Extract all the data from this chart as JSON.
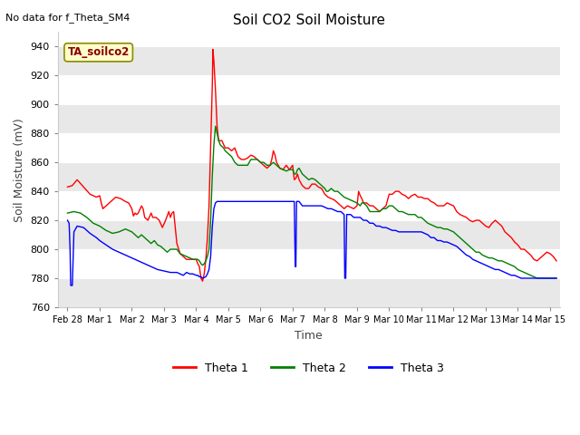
{
  "title": "Soil CO2 Soil Moisture",
  "no_data_text": "No data for f_Theta_SM4",
  "sensor_label": "TA_soilco2",
  "xlabel": "Time",
  "ylabel": "Soil Moisture (mV)",
  "ylim": [
    760,
    950
  ],
  "yticks": [
    760,
    780,
    800,
    820,
    840,
    860,
    880,
    900,
    920,
    940
  ],
  "bg_color": "#ffffff",
  "fig_color": "#ffffff",
  "grid_colors": [
    "#e8e8e8",
    "#ffffff"
  ],
  "legend_labels": [
    "Theta 1",
    "Theta 2",
    "Theta 3"
  ],
  "line_colors": [
    "red",
    "green",
    "blue"
  ],
  "xtick_positions": [
    0,
    1,
    2,
    3,
    4,
    5,
    6,
    7,
    8,
    9,
    10,
    11,
    12,
    13,
    14,
    15
  ],
  "xtick_labels": [
    "Feb 28",
    "Mar 1",
    "Mar 2",
    "Mar 3",
    "Mar 4",
    "Mar 5",
    "Mar 6",
    "Mar 7",
    "Mar 8",
    "Mar 9",
    "Mar 10",
    "Mar 11",
    "Mar 12",
    "Mar 13",
    "Mar 14",
    "Mar 15"
  ],
  "theta1": [
    [
      0.0,
      843
    ],
    [
      0.15,
      844
    ],
    [
      0.3,
      848
    ],
    [
      0.5,
      843
    ],
    [
      0.7,
      838
    ],
    [
      0.9,
      836
    ],
    [
      1.0,
      837
    ],
    [
      1.05,
      832
    ],
    [
      1.1,
      828
    ],
    [
      1.2,
      830
    ],
    [
      1.35,
      833
    ],
    [
      1.5,
      836
    ],
    [
      1.65,
      835
    ],
    [
      1.8,
      833
    ],
    [
      1.9,
      832
    ],
    [
      2.0,
      828
    ],
    [
      2.05,
      823
    ],
    [
      2.1,
      825
    ],
    [
      2.15,
      824
    ],
    [
      2.2,
      825
    ],
    [
      2.3,
      830
    ],
    [
      2.35,
      828
    ],
    [
      2.4,
      822
    ],
    [
      2.5,
      820
    ],
    [
      2.6,
      825
    ],
    [
      2.65,
      822
    ],
    [
      2.75,
      822
    ],
    [
      2.85,
      820
    ],
    [
      2.95,
      815
    ],
    [
      3.05,
      820
    ],
    [
      3.1,
      823
    ],
    [
      3.15,
      826
    ],
    [
      3.2,
      822
    ],
    [
      3.25,
      825
    ],
    [
      3.3,
      826
    ],
    [
      3.35,
      815
    ],
    [
      3.4,
      804
    ],
    [
      3.5,
      797
    ],
    [
      3.6,
      795
    ],
    [
      3.7,
      793
    ],
    [
      3.8,
      793
    ],
    [
      3.9,
      793
    ],
    [
      4.0,
      793
    ],
    [
      4.05,
      790
    ],
    [
      4.1,
      788
    ],
    [
      4.15,
      780
    ],
    [
      4.2,
      778
    ],
    [
      4.25,
      783
    ],
    [
      4.3,
      793
    ],
    [
      4.35,
      808
    ],
    [
      4.4,
      830
    ],
    [
      4.45,
      870
    ],
    [
      4.5,
      912
    ],
    [
      4.52,
      938
    ],
    [
      4.55,
      930
    ],
    [
      4.6,
      910
    ],
    [
      4.65,
      885
    ],
    [
      4.7,
      875
    ],
    [
      4.75,
      875
    ],
    [
      4.8,
      875
    ],
    [
      4.9,
      870
    ],
    [
      5.0,
      870
    ],
    [
      5.1,
      868
    ],
    [
      5.2,
      870
    ],
    [
      5.3,
      864
    ],
    [
      5.4,
      862
    ],
    [
      5.5,
      862
    ],
    [
      5.6,
      863
    ],
    [
      5.7,
      865
    ],
    [
      5.8,
      864
    ],
    [
      5.9,
      862
    ],
    [
      6.0,
      860
    ],
    [
      6.1,
      858
    ],
    [
      6.2,
      856
    ],
    [
      6.3,
      858
    ],
    [
      6.35,
      862
    ],
    [
      6.4,
      868
    ],
    [
      6.45,
      865
    ],
    [
      6.5,
      860
    ],
    [
      6.6,
      856
    ],
    [
      6.7,
      855
    ],
    [
      6.8,
      858
    ],
    [
      6.9,
      855
    ],
    [
      7.0,
      858
    ],
    [
      7.05,
      848
    ],
    [
      7.1,
      849
    ],
    [
      7.15,
      852
    ],
    [
      7.2,
      848
    ],
    [
      7.25,
      846
    ],
    [
      7.3,
      844
    ],
    [
      7.4,
      842
    ],
    [
      7.5,
      842
    ],
    [
      7.6,
      845
    ],
    [
      7.7,
      845
    ],
    [
      7.8,
      843
    ],
    [
      7.9,
      842
    ],
    [
      8.0,
      838
    ],
    [
      8.1,
      836
    ],
    [
      8.2,
      835
    ],
    [
      8.3,
      834
    ],
    [
      8.4,
      832
    ],
    [
      8.5,
      830
    ],
    [
      8.6,
      828
    ],
    [
      8.7,
      830
    ],
    [
      8.8,
      829
    ],
    [
      8.9,
      828
    ],
    [
      9.0,
      830
    ],
    [
      9.05,
      840
    ],
    [
      9.1,
      837
    ],
    [
      9.15,
      835
    ],
    [
      9.2,
      832
    ],
    [
      9.3,
      832
    ],
    [
      9.4,
      830
    ],
    [
      9.5,
      830
    ],
    [
      9.6,
      828
    ],
    [
      9.7,
      826
    ],
    [
      9.8,
      828
    ],
    [
      9.9,
      830
    ],
    [
      10.0,
      838
    ],
    [
      10.1,
      838
    ],
    [
      10.2,
      840
    ],
    [
      10.3,
      840
    ],
    [
      10.4,
      838
    ],
    [
      10.5,
      837
    ],
    [
      10.6,
      835
    ],
    [
      10.7,
      837
    ],
    [
      10.8,
      838
    ],
    [
      10.9,
      836
    ],
    [
      11.0,
      836
    ],
    [
      11.1,
      835
    ],
    [
      11.2,
      835
    ],
    [
      11.3,
      833
    ],
    [
      11.4,
      832
    ],
    [
      11.5,
      830
    ],
    [
      11.6,
      830
    ],
    [
      11.7,
      830
    ],
    [
      11.8,
      832
    ],
    [
      11.9,
      831
    ],
    [
      12.0,
      830
    ],
    [
      12.1,
      826
    ],
    [
      12.2,
      824
    ],
    [
      12.3,
      823
    ],
    [
      12.4,
      822
    ],
    [
      12.5,
      820
    ],
    [
      12.6,
      819
    ],
    [
      12.7,
      820
    ],
    [
      12.8,
      820
    ],
    [
      12.9,
      818
    ],
    [
      13.0,
      816
    ],
    [
      13.1,
      815
    ],
    [
      13.2,
      818
    ],
    [
      13.3,
      820
    ],
    [
      13.4,
      818
    ],
    [
      13.5,
      816
    ],
    [
      13.6,
      812
    ],
    [
      13.7,
      810
    ],
    [
      13.8,
      808
    ],
    [
      13.9,
      805
    ],
    [
      14.0,
      803
    ],
    [
      14.1,
      800
    ],
    [
      14.2,
      800
    ],
    [
      14.3,
      798
    ],
    [
      14.4,
      796
    ],
    [
      14.5,
      793
    ],
    [
      14.6,
      792
    ],
    [
      14.7,
      794
    ],
    [
      14.8,
      796
    ],
    [
      14.9,
      798
    ],
    [
      15.0,
      797
    ],
    [
      15.1,
      795
    ],
    [
      15.2,
      792
    ]
  ],
  "theta2": [
    [
      0.0,
      825
    ],
    [
      0.2,
      826
    ],
    [
      0.4,
      825
    ],
    [
      0.6,
      822
    ],
    [
      0.8,
      818
    ],
    [
      1.0,
      816
    ],
    [
      1.2,
      813
    ],
    [
      1.4,
      811
    ],
    [
      1.6,
      812
    ],
    [
      1.8,
      814
    ],
    [
      2.0,
      812
    ],
    [
      2.1,
      810
    ],
    [
      2.2,
      808
    ],
    [
      2.3,
      810
    ],
    [
      2.4,
      808
    ],
    [
      2.5,
      806
    ],
    [
      2.6,
      804
    ],
    [
      2.7,
      806
    ],
    [
      2.8,
      803
    ],
    [
      2.9,
      802
    ],
    [
      3.0,
      800
    ],
    [
      3.1,
      798
    ],
    [
      3.2,
      800
    ],
    [
      3.3,
      800
    ],
    [
      3.4,
      800
    ],
    [
      3.5,
      797
    ],
    [
      3.6,
      796
    ],
    [
      3.7,
      795
    ],
    [
      3.8,
      794
    ],
    [
      3.9,
      793
    ],
    [
      4.0,
      793
    ],
    [
      4.05,
      793
    ],
    [
      4.1,
      792
    ],
    [
      4.15,
      790
    ],
    [
      4.2,
      789
    ],
    [
      4.25,
      790
    ],
    [
      4.3,
      792
    ],
    [
      4.35,
      795
    ],
    [
      4.4,
      800
    ],
    [
      4.45,
      820
    ],
    [
      4.5,
      850
    ],
    [
      4.55,
      872
    ],
    [
      4.6,
      885
    ],
    [
      4.65,
      880
    ],
    [
      4.7,
      875
    ],
    [
      4.75,
      872
    ],
    [
      4.85,
      870
    ],
    [
      4.9,
      868
    ],
    [
      5.0,
      866
    ],
    [
      5.1,
      864
    ],
    [
      5.2,
      860
    ],
    [
      5.3,
      858
    ],
    [
      5.4,
      858
    ],
    [
      5.5,
      858
    ],
    [
      5.6,
      858
    ],
    [
      5.7,
      862
    ],
    [
      5.8,
      862
    ],
    [
      5.9,
      862
    ],
    [
      6.0,
      860
    ],
    [
      6.1,
      860
    ],
    [
      6.2,
      858
    ],
    [
      6.3,
      858
    ],
    [
      6.4,
      860
    ],
    [
      6.5,
      858
    ],
    [
      6.6,
      856
    ],
    [
      6.7,
      855
    ],
    [
      6.8,
      854
    ],
    [
      6.9,
      855
    ],
    [
      7.0,
      855
    ],
    [
      7.05,
      852
    ],
    [
      7.1,
      852
    ],
    [
      7.15,
      855
    ],
    [
      7.2,
      856
    ],
    [
      7.3,
      852
    ],
    [
      7.4,
      850
    ],
    [
      7.5,
      848
    ],
    [
      7.6,
      849
    ],
    [
      7.7,
      848
    ],
    [
      7.8,
      846
    ],
    [
      7.9,
      844
    ],
    [
      8.0,
      842
    ],
    [
      8.05,
      840
    ],
    [
      8.1,
      840
    ],
    [
      8.2,
      842
    ],
    [
      8.3,
      840
    ],
    [
      8.4,
      840
    ],
    [
      8.5,
      838
    ],
    [
      8.6,
      836
    ],
    [
      8.7,
      835
    ],
    [
      8.8,
      834
    ],
    [
      8.9,
      833
    ],
    [
      9.0,
      832
    ],
    [
      9.1,
      830
    ],
    [
      9.15,
      832
    ],
    [
      9.2,
      832
    ],
    [
      9.3,
      830
    ],
    [
      9.35,
      828
    ],
    [
      9.4,
      826
    ],
    [
      9.5,
      826
    ],
    [
      9.6,
      826
    ],
    [
      9.7,
      826
    ],
    [
      9.8,
      828
    ],
    [
      9.9,
      828
    ],
    [
      10.0,
      830
    ],
    [
      10.1,
      830
    ],
    [
      10.2,
      828
    ],
    [
      10.3,
      826
    ],
    [
      10.4,
      826
    ],
    [
      10.5,
      825
    ],
    [
      10.6,
      824
    ],
    [
      10.7,
      824
    ],
    [
      10.8,
      824
    ],
    [
      10.9,
      822
    ],
    [
      11.0,
      822
    ],
    [
      11.1,
      820
    ],
    [
      11.2,
      818
    ],
    [
      11.3,
      817
    ],
    [
      11.4,
      816
    ],
    [
      11.5,
      815
    ],
    [
      11.6,
      815
    ],
    [
      11.7,
      814
    ],
    [
      11.8,
      814
    ],
    [
      11.9,
      813
    ],
    [
      12.0,
      812
    ],
    [
      12.1,
      810
    ],
    [
      12.2,
      808
    ],
    [
      12.3,
      806
    ],
    [
      12.4,
      804
    ],
    [
      12.5,
      802
    ],
    [
      12.6,
      800
    ],
    [
      12.7,
      798
    ],
    [
      12.8,
      798
    ],
    [
      12.9,
      796
    ],
    [
      13.0,
      795
    ],
    [
      13.1,
      794
    ],
    [
      13.2,
      794
    ],
    [
      13.3,
      793
    ],
    [
      13.4,
      792
    ],
    [
      13.5,
      792
    ],
    [
      13.6,
      791
    ],
    [
      13.7,
      790
    ],
    [
      13.8,
      789
    ],
    [
      13.9,
      788
    ],
    [
      14.0,
      786
    ],
    [
      14.1,
      785
    ],
    [
      14.2,
      784
    ],
    [
      14.3,
      783
    ],
    [
      14.4,
      782
    ],
    [
      14.5,
      781
    ],
    [
      14.6,
      780
    ],
    [
      14.7,
      780
    ],
    [
      14.8,
      780
    ],
    [
      14.9,
      780
    ],
    [
      15.0,
      780
    ],
    [
      15.1,
      780
    ],
    [
      15.2,
      780
    ]
  ],
  "theta3": [
    [
      0.0,
      820
    ],
    [
      0.05,
      818
    ],
    [
      0.08,
      800
    ],
    [
      0.1,
      775
    ],
    [
      0.15,
      775
    ],
    [
      0.2,
      812
    ],
    [
      0.3,
      816
    ],
    [
      0.5,
      815
    ],
    [
      0.7,
      811
    ],
    [
      0.9,
      808
    ],
    [
      1.0,
      806
    ],
    [
      1.2,
      803
    ],
    [
      1.4,
      800
    ],
    [
      1.6,
      798
    ],
    [
      1.8,
      796
    ],
    [
      2.0,
      794
    ],
    [
      2.2,
      792
    ],
    [
      2.4,
      790
    ],
    [
      2.6,
      788
    ],
    [
      2.8,
      786
    ],
    [
      3.0,
      785
    ],
    [
      3.2,
      784
    ],
    [
      3.4,
      784
    ],
    [
      3.5,
      783
    ],
    [
      3.6,
      782
    ],
    [
      3.7,
      784
    ],
    [
      3.8,
      783
    ],
    [
      3.9,
      783
    ],
    [
      4.0,
      782
    ],
    [
      4.05,
      782
    ],
    [
      4.1,
      781
    ],
    [
      4.15,
      781
    ],
    [
      4.2,
      780
    ],
    [
      4.3,
      781
    ],
    [
      4.35,
      783
    ],
    [
      4.4,
      786
    ],
    [
      4.45,
      795
    ],
    [
      4.5,
      815
    ],
    [
      4.55,
      828
    ],
    [
      4.6,
      832
    ],
    [
      4.65,
      833
    ],
    [
      4.7,
      833
    ],
    [
      4.8,
      833
    ],
    [
      4.9,
      833
    ],
    [
      5.0,
      833
    ],
    [
      5.1,
      833
    ],
    [
      5.2,
      833
    ],
    [
      5.3,
      833
    ],
    [
      5.4,
      833
    ],
    [
      5.5,
      833
    ],
    [
      5.6,
      833
    ],
    [
      5.7,
      833
    ],
    [
      5.8,
      833
    ],
    [
      5.9,
      833
    ],
    [
      6.0,
      833
    ],
    [
      6.1,
      833
    ],
    [
      6.2,
      833
    ],
    [
      6.3,
      833
    ],
    [
      6.35,
      833
    ],
    [
      6.4,
      833
    ],
    [
      6.5,
      833
    ],
    [
      6.6,
      833
    ],
    [
      6.65,
      833
    ],
    [
      6.7,
      833
    ],
    [
      6.75,
      833
    ],
    [
      6.8,
      833
    ],
    [
      6.85,
      833
    ],
    [
      6.9,
      833
    ],
    [
      6.95,
      833
    ],
    [
      7.0,
      833
    ],
    [
      7.05,
      833
    ],
    [
      7.08,
      788
    ],
    [
      7.1,
      788
    ],
    [
      7.12,
      833
    ],
    [
      7.15,
      833
    ],
    [
      7.2,
      833
    ],
    [
      7.3,
      830
    ],
    [
      7.4,
      830
    ],
    [
      7.5,
      830
    ],
    [
      7.6,
      830
    ],
    [
      7.7,
      830
    ],
    [
      7.8,
      830
    ],
    [
      7.9,
      830
    ],
    [
      8.0,
      829
    ],
    [
      8.1,
      828
    ],
    [
      8.2,
      828
    ],
    [
      8.3,
      827
    ],
    [
      8.4,
      826
    ],
    [
      8.5,
      826
    ],
    [
      8.6,
      824
    ],
    [
      8.62,
      780
    ],
    [
      8.65,
      780
    ],
    [
      8.68,
      824
    ],
    [
      8.7,
      824
    ],
    [
      8.8,
      824
    ],
    [
      8.9,
      822
    ],
    [
      9.0,
      822
    ],
    [
      9.1,
      822
    ],
    [
      9.2,
      820
    ],
    [
      9.3,
      820
    ],
    [
      9.4,
      818
    ],
    [
      9.5,
      818
    ],
    [
      9.6,
      816
    ],
    [
      9.7,
      816
    ],
    [
      9.8,
      815
    ],
    [
      9.9,
      815
    ],
    [
      10.0,
      814
    ],
    [
      10.1,
      813
    ],
    [
      10.2,
      813
    ],
    [
      10.3,
      812
    ],
    [
      10.4,
      812
    ],
    [
      10.5,
      812
    ],
    [
      10.6,
      812
    ],
    [
      10.7,
      812
    ],
    [
      10.8,
      812
    ],
    [
      10.9,
      812
    ],
    [
      11.0,
      812
    ],
    [
      11.1,
      811
    ],
    [
      11.2,
      810
    ],
    [
      11.3,
      808
    ],
    [
      11.4,
      808
    ],
    [
      11.5,
      806
    ],
    [
      11.6,
      806
    ],
    [
      11.7,
      805
    ],
    [
      11.8,
      805
    ],
    [
      11.9,
      804
    ],
    [
      12.0,
      803
    ],
    [
      12.1,
      802
    ],
    [
      12.2,
      800
    ],
    [
      12.3,
      798
    ],
    [
      12.4,
      796
    ],
    [
      12.5,
      795
    ],
    [
      12.6,
      793
    ],
    [
      12.7,
      792
    ],
    [
      12.8,
      791
    ],
    [
      12.9,
      790
    ],
    [
      13.0,
      789
    ],
    [
      13.1,
      788
    ],
    [
      13.2,
      787
    ],
    [
      13.3,
      786
    ],
    [
      13.4,
      786
    ],
    [
      13.5,
      785
    ],
    [
      13.6,
      784
    ],
    [
      13.7,
      783
    ],
    [
      13.8,
      782
    ],
    [
      13.9,
      782
    ],
    [
      14.0,
      781
    ],
    [
      14.1,
      780
    ],
    [
      14.2,
      780
    ],
    [
      14.3,
      780
    ],
    [
      14.4,
      780
    ],
    [
      14.5,
      780
    ],
    [
      14.6,
      780
    ],
    [
      14.7,
      780
    ],
    [
      14.8,
      780
    ],
    [
      14.9,
      780
    ],
    [
      15.0,
      780
    ],
    [
      15.1,
      780
    ],
    [
      15.2,
      780
    ]
  ]
}
